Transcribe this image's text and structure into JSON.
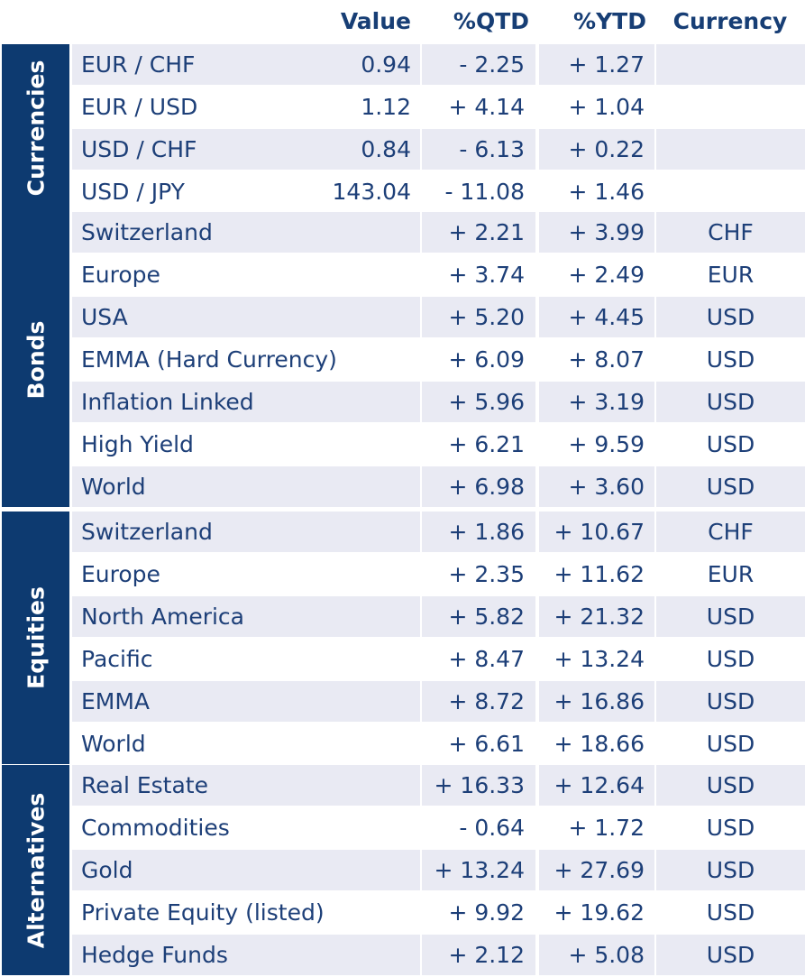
{
  "headers": {
    "value": "Value",
    "qtd": "%QTD",
    "ytd": "%YTD",
    "currency": "Currency"
  },
  "sections": [
    {
      "label": "Currencies",
      "rows": [
        {
          "name": "EUR / CHF",
          "value": "0.94",
          "qtd": "- 2.25",
          "ytd": "+ 1.27",
          "currency": ""
        },
        {
          "name": "EUR / USD",
          "value": "1.12",
          "qtd": "+ 4.14",
          "ytd": "+ 1.04",
          "currency": ""
        },
        {
          "name": "USD / CHF",
          "value": "0.84",
          "qtd": "- 6.13",
          "ytd": "+ 0.22",
          "currency": ""
        },
        {
          "name": "USD / JPY",
          "value": "143.04",
          "qtd": "- 11.08",
          "ytd": "+ 1.46",
          "currency": ""
        }
      ]
    },
    {
      "label": "Bonds",
      "rows": [
        {
          "name": "Switzerland",
          "value": "",
          "qtd": "+ 2.21",
          "ytd": "+ 3.99",
          "currency": "CHF"
        },
        {
          "name": "Europe",
          "value": "",
          "qtd": "+ 3.74",
          "ytd": "+ 2.49",
          "currency": "EUR"
        },
        {
          "name": "USA",
          "value": "",
          "qtd": "+ 5.20",
          "ytd": "+ 4.45",
          "currency": "USD"
        },
        {
          "name": "EMMA (Hard Currency)",
          "value": "",
          "qtd": "+ 6.09",
          "ytd": "+ 8.07",
          "currency": "USD"
        },
        {
          "name": "Inflation Linked",
          "value": "",
          "qtd": "+ 5.96",
          "ytd": "+ 3.19",
          "currency": "USD"
        },
        {
          "name": "High Yield",
          "value": "",
          "qtd": "+ 6.21",
          "ytd": "+ 9.59",
          "currency": "USD"
        },
        {
          "name": "World",
          "value": "",
          "qtd": "+ 6.98",
          "ytd": "+ 3.60",
          "currency": "USD"
        }
      ]
    },
    {
      "label": "Equities",
      "rows": [
        {
          "name": "Switzerland",
          "value": "",
          "qtd": "+ 1.86",
          "ytd": "+ 10.67",
          "currency": "CHF"
        },
        {
          "name": "Europe",
          "value": "",
          "qtd": "+ 2.35",
          "ytd": "+ 11.62",
          "currency": "EUR"
        },
        {
          "name": "North America",
          "value": "",
          "qtd": "+ 5.82",
          "ytd": "+ 21.32",
          "currency": "USD"
        },
        {
          "name": "Pacific",
          "value": "",
          "qtd": "+ 8.47",
          "ytd": "+ 13.24",
          "currency": "USD"
        },
        {
          "name": "EMMA",
          "value": "",
          "qtd": "+ 8.72",
          "ytd": "+ 16.86",
          "currency": "USD"
        },
        {
          "name": "World",
          "value": "",
          "qtd": "+ 6.61",
          "ytd": "+ 18.66",
          "currency": "USD"
        }
      ]
    },
    {
      "label": "Alternatives",
      "rows": [
        {
          "name": "Real Estate",
          "value": "",
          "qtd": "+ 16.33",
          "ytd": "+ 12.64",
          "currency": "USD"
        },
        {
          "name": "Commodities",
          "value": "",
          "qtd": "- 0.64",
          "ytd": "+ 1.72",
          "currency": "USD"
        },
        {
          "name": "Gold",
          "value": "",
          "qtd": "+ 13.24",
          "ytd": "+ 27.69",
          "currency": "USD"
        },
        {
          "name": "Private Equity (listed)",
          "value": "",
          "qtd": "+ 9.92",
          "ytd": "+ 19.62",
          "currency": "USD"
        },
        {
          "name": "Hedge Funds",
          "value": "",
          "qtd": "+ 2.12",
          "ytd": "+ 5.08",
          "currency": "USD"
        }
      ]
    }
  ],
  "colors": {
    "tab_background": "#0d3a70",
    "row_shade": "#e9eaf3",
    "text": "#1d3f78",
    "header_text": "#173e75"
  }
}
